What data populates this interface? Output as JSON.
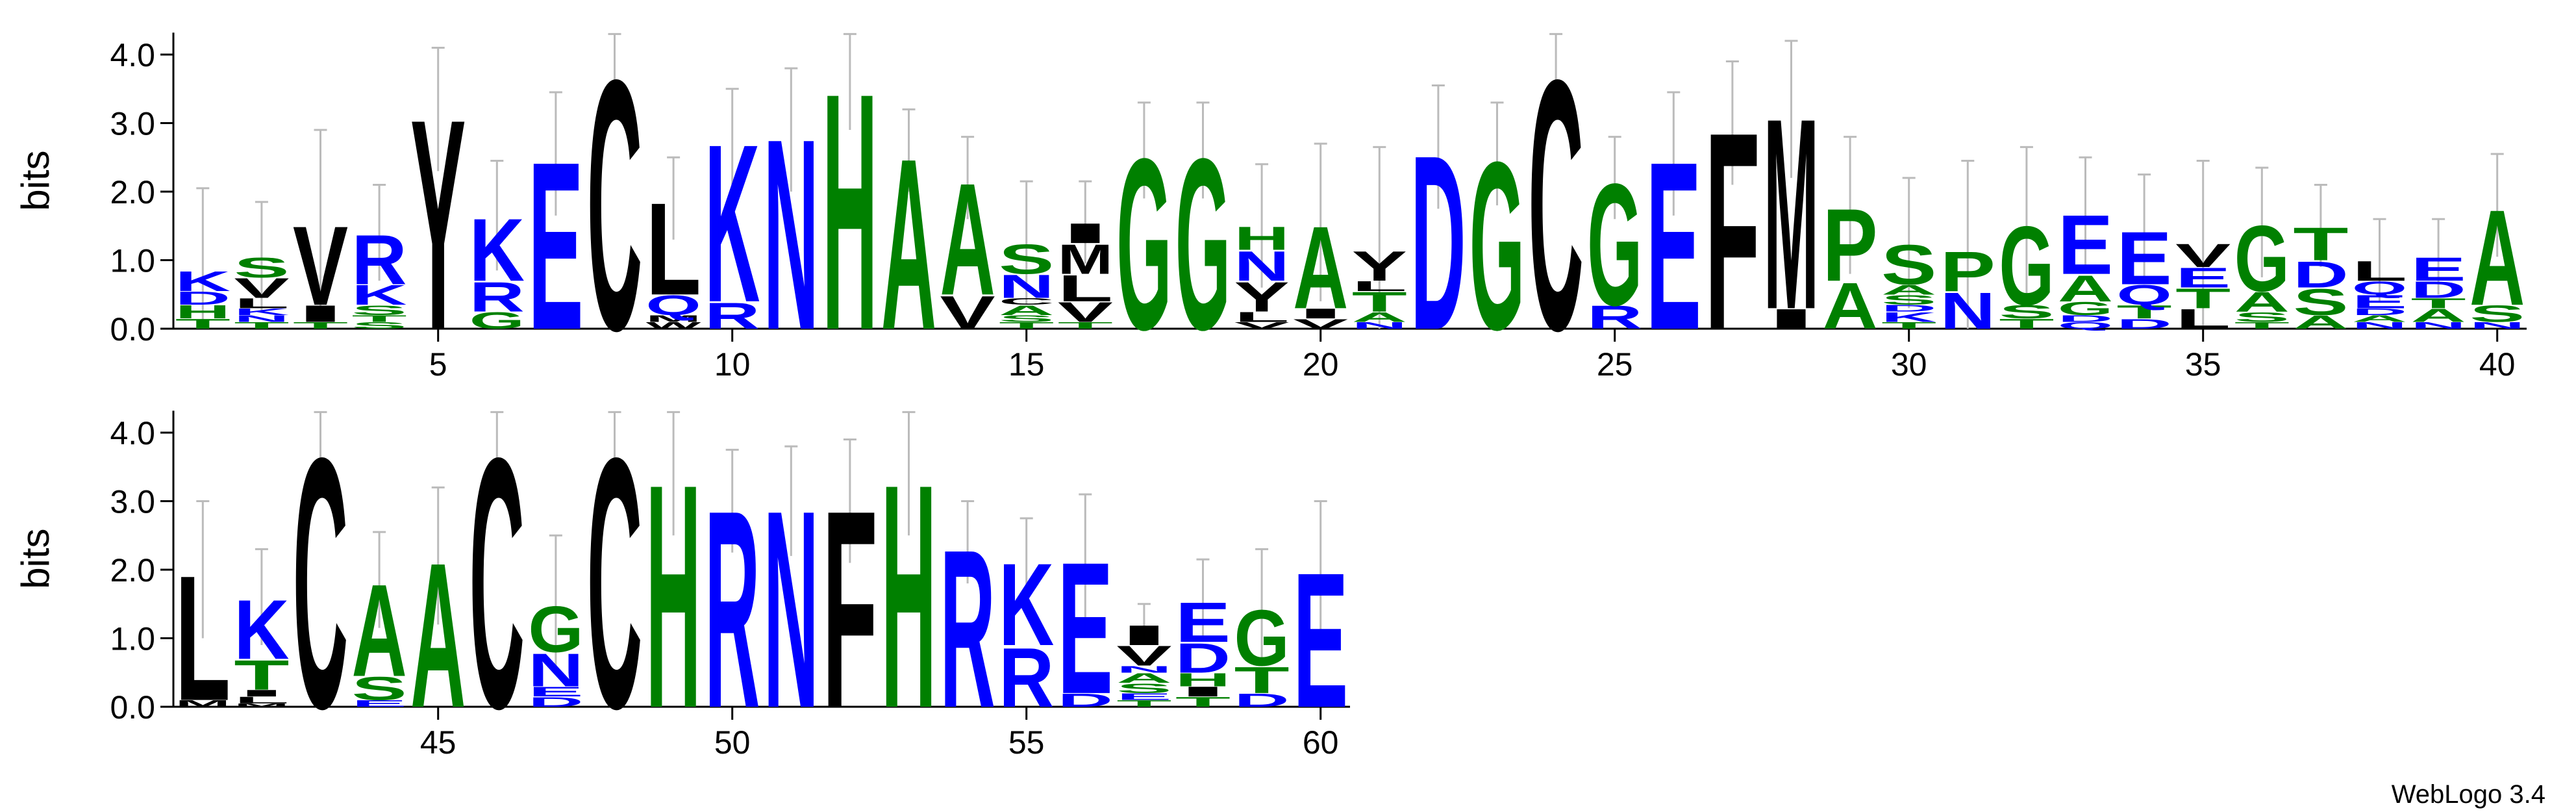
{
  "chart_data": [
    {
      "type": "logo",
      "ylabel": "bits",
      "ylim": [
        0,
        4.32
      ],
      "yticks": [
        {
          "value": 0,
          "label": "0.0"
        },
        {
          "value": 1,
          "label": "1.0"
        },
        {
          "value": 2,
          "label": "2.0"
        },
        {
          "value": 3,
          "label": "3.0"
        },
        {
          "value": 4,
          "label": "4.0"
        }
      ],
      "xlim": [
        0.5,
        40.5
      ],
      "xticks": [
        5,
        10,
        15,
        20,
        25,
        30,
        35,
        40
      ],
      "positions": [
        {
          "x": 1,
          "stack": [
            [
              "T",
              0.15
            ],
            [
              "H",
              0.2
            ],
            [
              "D",
              0.2
            ],
            [
              "K",
              0.3
            ]
          ],
          "err": 1.2
        },
        {
          "x": 2,
          "stack": [
            [
              "T",
              0.1
            ],
            [
              "N",
              0.1
            ],
            [
              "K",
              0.1
            ],
            [
              "L",
              0.15
            ],
            [
              "V",
              0.3
            ],
            [
              "S",
              0.3
            ]
          ],
          "err": 0.8
        },
        {
          "x": 3,
          "stack": [
            [
              "T",
              0.1
            ],
            [
              "I",
              0.25
            ],
            [
              "V",
              1.2
            ]
          ],
          "err": 1.35
        },
        {
          "x": 4,
          "stack": [
            [
              "S",
              0.1
            ],
            [
              "T",
              0.1
            ],
            [
              "S",
              0.15
            ],
            [
              "K",
              0.3
            ],
            [
              "R",
              0.75
            ]
          ],
          "err": 0.7
        },
        {
          "x": 5,
          "stack": [
            [
              "Y",
              3.2
            ]
          ],
          "err": 0.9
        },
        {
          "x": 6,
          "stack": [
            [
              "G",
              0.25
            ],
            [
              "R",
              0.45
            ],
            [
              "K",
              0.95
            ]
          ],
          "err": 0.8
        },
        {
          "x": 7,
          "stack": [
            [
              "E",
              2.55
            ]
          ],
          "err": 0.9
        },
        {
          "x": 8,
          "stack": [
            [
              "C",
              3.8
            ]
          ],
          "err": 0.5
        },
        {
          "x": 9,
          "stack": [
            [
              "W",
              0.1
            ],
            [
              "M",
              0.1
            ],
            [
              "Q",
              0.3
            ],
            [
              "L",
              1.4
            ]
          ],
          "err": 0.6
        },
        {
          "x": 10,
          "stack": [
            [
              "R",
              0.4
            ],
            [
              "K",
              2.4
            ]
          ],
          "err": 0.7
        },
        {
          "x": 11,
          "stack": [
            [
              "N",
              2.9
            ]
          ],
          "err": 0.9
        },
        {
          "x": 12,
          "stack": [
            [
              "H",
              3.6
            ]
          ],
          "err": 0.7
        },
        {
          "x": 13,
          "stack": [
            [
              "A",
              2.6
            ]
          ],
          "err": 0.6
        },
        {
          "x": 14,
          "stack": [
            [
              "V",
              0.5
            ],
            [
              "A",
              1.7
            ]
          ],
          "err": 0.6
        },
        {
          "x": 15,
          "stack": [
            [
              "T",
              0.1
            ],
            [
              "S",
              0.1
            ],
            [
              "A",
              0.15
            ],
            [
              "C",
              0.1
            ],
            [
              "N",
              0.35
            ],
            [
              "S",
              0.45
            ]
          ],
          "err": 0.9
        },
        {
          "x": 16,
          "stack": [
            [
              "T",
              0.1
            ],
            [
              "V",
              0.3
            ],
            [
              "L",
              0.4
            ],
            [
              "M",
              0.45
            ],
            [
              "I",
              0.3
            ]
          ],
          "err": 0.6
        },
        {
          "x": 17,
          "stack": [
            [
              "G",
              2.6
            ]
          ],
          "err": 0.7
        },
        {
          "x": 18,
          "stack": [
            [
              "G",
              2.6
            ]
          ],
          "err": 0.7
        },
        {
          "x": 19,
          "stack": [
            [
              "V",
              0.1
            ],
            [
              "L",
              0.15
            ],
            [
              "Y",
              0.45
            ],
            [
              "N",
              0.45
            ],
            [
              "H",
              0.35
            ]
          ],
          "err": 0.9
        },
        {
          "x": 20,
          "stack": [
            [
              "V",
              0.15
            ],
            [
              "I",
              0.15
            ],
            [
              "A",
              1.25
            ]
          ],
          "err": 1.15
        },
        {
          "x": 21,
          "stack": [
            [
              "N",
              0.1
            ],
            [
              "A",
              0.15
            ],
            [
              "T",
              0.3
            ],
            [
              "L",
              0.15
            ],
            [
              "Y",
              0.45
            ]
          ],
          "err": 1.5
        },
        {
          "x": 22,
          "stack": [
            [
              "D",
              2.65
            ]
          ],
          "err": 0.9
        },
        {
          "x": 23,
          "stack": [
            [
              "G",
              2.55
            ]
          ],
          "err": 0.75
        },
        {
          "x": 24,
          "stack": [
            [
              "C",
              3.8
            ]
          ],
          "err": 0.5
        },
        {
          "x": 25,
          "stack": [
            [
              "R",
              0.35
            ],
            [
              "G",
              1.85
            ]
          ],
          "err": 0.6
        },
        {
          "x": 26,
          "stack": [
            [
              "E",
              2.55
            ]
          ],
          "err": 0.9
        },
        {
          "x": 27,
          "stack": [
            [
              "F",
              3.0
            ]
          ],
          "err": 0.9
        },
        {
          "x": 28,
          "stack": [
            [
              "I",
              0.3
            ],
            [
              "M",
              2.9
            ]
          ],
          "err": 1.0
        },
        {
          "x": 29,
          "stack": [
            [
              "A",
              0.7
            ],
            [
              "P",
              1.1
            ]
          ],
          "err": 1.0
        },
        {
          "x": 30,
          "stack": [
            [
              "T",
              0.1
            ],
            [
              "K",
              0.15
            ],
            [
              "D",
              0.1
            ],
            [
              "S",
              0.15
            ],
            [
              "A",
              0.15
            ],
            [
              "S",
              0.6
            ]
          ],
          "err": 0.95
        },
        {
          "x": 31,
          "stack": [
            [
              "N",
              0.55
            ],
            [
              "P",
              0.6
            ]
          ],
          "err": 1.3
        },
        {
          "x": 32,
          "stack": [
            [
              "T",
              0.15
            ],
            [
              "S",
              0.2
            ],
            [
              "G",
              1.2
            ]
          ],
          "err": 1.1
        },
        {
          "x": 33,
          "stack": [
            [
              "Q",
              0.1
            ],
            [
              "D",
              0.1
            ],
            [
              "G",
              0.2
            ],
            [
              "A",
              0.4
            ],
            [
              "E",
              0.9
            ]
          ],
          "err": 0.8
        },
        {
          "x": 34,
          "stack": [
            [
              "D",
              0.15
            ],
            [
              "T",
              0.2
            ],
            [
              "Q",
              0.3
            ],
            [
              "E",
              0.8
            ]
          ],
          "err": 0.8
        },
        {
          "x": 35,
          "stack": [
            [
              "L",
              0.3
            ],
            [
              "T",
              0.3
            ],
            [
              "E",
              0.3
            ],
            [
              "V",
              0.35
            ]
          ],
          "err": 1.2
        },
        {
          "x": 36,
          "stack": [
            [
              "T",
              0.1
            ],
            [
              "S",
              0.15
            ],
            [
              "A",
              0.3
            ],
            [
              "G",
              1.0
            ]
          ],
          "err": 0.8
        },
        {
          "x": 37,
          "stack": [
            [
              "A",
              0.2
            ],
            [
              "S",
              0.4
            ],
            [
              "D",
              0.4
            ],
            [
              "T",
              0.5
            ]
          ],
          "err": 0.6
        },
        {
          "x": 38,
          "stack": [
            [
              "N",
              0.1
            ],
            [
              "A",
              0.1
            ],
            [
              "D",
              0.1
            ],
            [
              "E",
              0.2
            ],
            [
              "Q",
              0.2
            ],
            [
              "L",
              0.3
            ]
          ],
          "err": 0.6
        },
        {
          "x": 39,
          "stack": [
            [
              "N",
              0.1
            ],
            [
              "A",
              0.2
            ],
            [
              "T",
              0.15
            ],
            [
              "D",
              0.25
            ],
            [
              "E",
              0.35
            ]
          ],
          "err": 0.55
        },
        {
          "x": 40,
          "stack": [
            [
              "N",
              0.1
            ],
            [
              "S",
              0.25
            ],
            [
              "A",
              1.45
            ]
          ],
          "err": 0.75
        }
      ]
    },
    {
      "type": "logo",
      "ylabel": "bits",
      "ylim": [
        0,
        4.32
      ],
      "yticks": [
        {
          "value": 0,
          "label": "0.0"
        },
        {
          "value": 1,
          "label": "1.0"
        },
        {
          "value": 2,
          "label": "2.0"
        },
        {
          "value": 3,
          "label": "3.0"
        },
        {
          "value": 4,
          "label": "4.0"
        }
      ],
      "xlim": [
        40.5,
        60.5
      ],
      "xticks": [
        45,
        50,
        55,
        60
      ],
      "positions": [
        {
          "x": 41,
          "stack": [
            [
              "M",
              0.1
            ],
            [
              "L",
              1.9
            ]
          ],
          "err": 1.0
        },
        {
          "x": 42,
          "stack": [
            [
              "M",
              0.05
            ],
            [
              "L",
              0.1
            ],
            [
              "I",
              0.1
            ],
            [
              "T",
              0.45
            ],
            [
              "K",
              0.9
            ]
          ],
          "err": 0.7
        },
        {
          "x": 43,
          "stack": [
            [
              "C",
              3.8
            ]
          ],
          "err": 0.5
        },
        {
          "x": 44,
          "stack": [
            [
              "E",
              0.1
            ],
            [
              "S",
              0.35
            ],
            [
              "A",
              1.4
            ]
          ],
          "err": 0.7
        },
        {
          "x": 45,
          "stack": [
            [
              "A",
              2.2
            ]
          ],
          "err": 1.0
        },
        {
          "x": 46,
          "stack": [
            [
              "C",
              3.8
            ]
          ],
          "err": 0.5
        },
        {
          "x": 47,
          "stack": [
            [
              "D",
              0.15
            ],
            [
              "E",
              0.15
            ],
            [
              "N",
              0.5
            ],
            [
              "G",
              0.7
            ]
          ],
          "err": 1.0
        },
        {
          "x": 48,
          "stack": [
            [
              "C",
              3.8
            ]
          ],
          "err": 0.5
        },
        {
          "x": 49,
          "stack": [
            [
              "H",
              3.4
            ]
          ],
          "err": 0.9
        },
        {
          "x": 50,
          "stack": [
            [
              "R",
              3.0
            ]
          ],
          "err": 0.75
        },
        {
          "x": 51,
          "stack": [
            [
              "N",
              3.0
            ]
          ],
          "err": 0.8
        },
        {
          "x": 52,
          "stack": [
            [
              "F",
              3.0
            ]
          ],
          "err": 0.9
        },
        {
          "x": 53,
          "stack": [
            [
              "H",
              3.4
            ]
          ],
          "err": 0.9
        },
        {
          "x": 54,
          "stack": [
            [
              "R",
              2.4
            ]
          ],
          "err": 0.6
        },
        {
          "x": 55,
          "stack": [
            [
              "R",
              0.9
            ],
            [
              "K",
              1.25
            ]
          ],
          "err": 0.6
        },
        {
          "x": 56,
          "stack": [
            [
              "D",
              0.2
            ],
            [
              "E",
              2.0
            ]
          ],
          "err": 0.9
        },
        {
          "x": 57,
          "stack": [
            [
              "T",
              0.1
            ],
            [
              "E",
              0.1
            ],
            [
              "S",
              0.15
            ],
            [
              "A",
              0.15
            ],
            [
              "N",
              0.1
            ],
            [
              "V",
              0.3
            ],
            [
              "I",
              0.3
            ]
          ],
          "err": 0.3
        },
        {
          "x": 58,
          "stack": [
            [
              "T",
              0.15
            ],
            [
              "I",
              0.15
            ],
            [
              "H",
              0.2
            ],
            [
              "D",
              0.45
            ],
            [
              "E",
              0.6
            ]
          ],
          "err": 0.6
        },
        {
          "x": 59,
          "stack": [
            [
              "D",
              0.2
            ],
            [
              "T",
              0.4
            ],
            [
              "G",
              0.85
            ]
          ],
          "err": 0.85
        },
        {
          "x": 60,
          "stack": [
            [
              "E",
              2.05
            ]
          ],
          "err": 0.95
        }
      ]
    }
  ],
  "letter_colors": {
    "K": "#0000ff",
    "R": "#0000ff",
    "E": "#0000ff",
    "D": "#0000ff",
    "N": "#0000ff",
    "Q": "#0000ff",
    "G": "#008000",
    "S": "#008000",
    "T": "#008000",
    "A": "#008000",
    "H": "#008000",
    "P": "#008000",
    "C": "#000000",
    "L": "#000000",
    "V": "#000000",
    "I": "#000000",
    "M": "#000000",
    "F": "#000000",
    "W": "#000000",
    "Y": "#000000"
  },
  "footer": "WebLogo 3.4"
}
